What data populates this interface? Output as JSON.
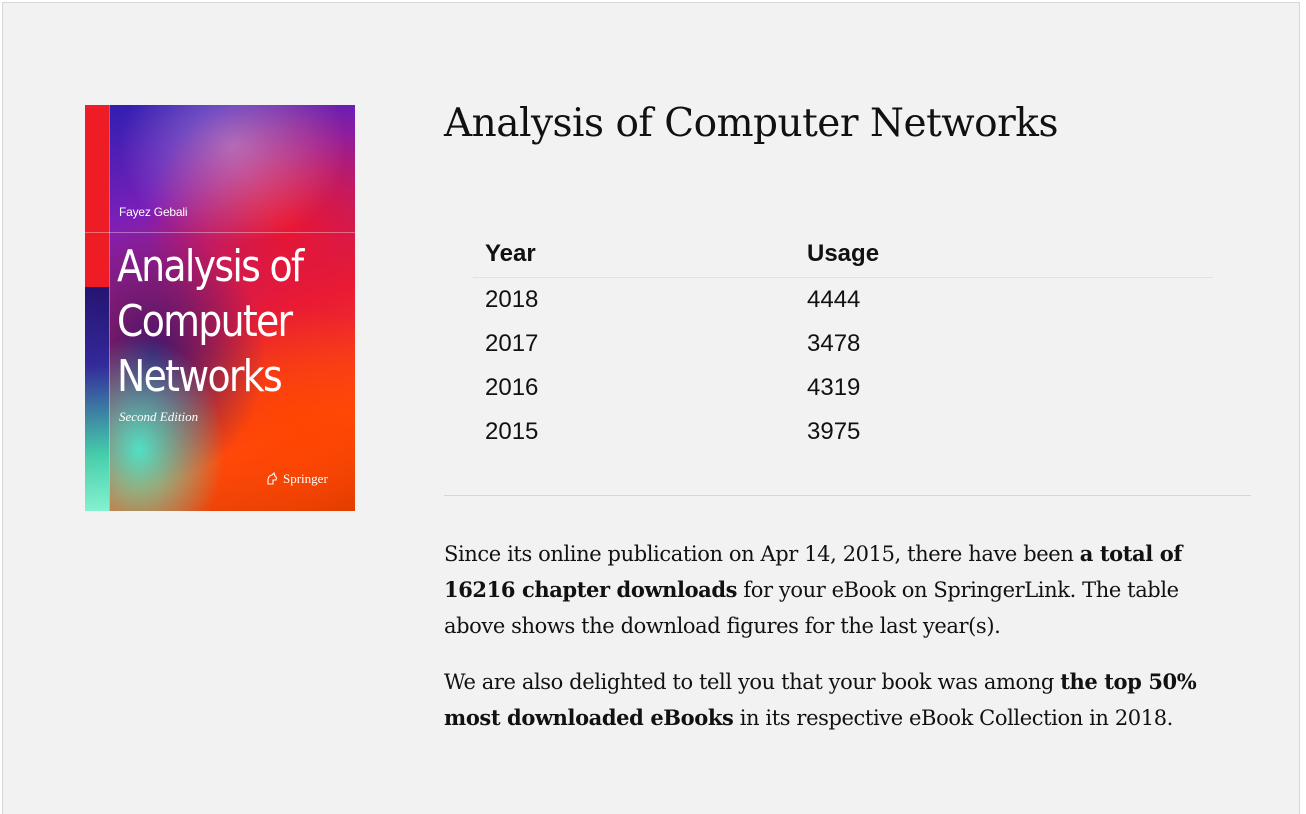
{
  "cover": {
    "author": "Fayez Gebali",
    "title_lines": [
      "Analysis of",
      "Computer",
      "Networks"
    ],
    "edition": "Second Edition",
    "publisher": "Springer",
    "colors": {
      "accent_bar": "#ee1c24"
    }
  },
  "title": "Analysis of Computer Networks",
  "table": {
    "headers": [
      "Year",
      "Usage"
    ],
    "rows": [
      {
        "year": "2018",
        "usage": "4444"
      },
      {
        "year": "2017",
        "usage": "3478"
      },
      {
        "year": "2016",
        "usage": "4319"
      },
      {
        "year": "2015",
        "usage": "3975"
      }
    ]
  },
  "paragraph1": {
    "before": "Since its online publication on Apr 14, 2015, there have been ",
    "bold": "a total of 16216 chapter downloads",
    "after": " for your eBook on SpringerLink. The table above shows the download figures for the last year(s)."
  },
  "paragraph2": {
    "before": "We are also delighted to tell you that your book was among ",
    "bold": "the top 50% most downloaded eBooks",
    "after": " in its respective eBook Collection in 2018."
  }
}
